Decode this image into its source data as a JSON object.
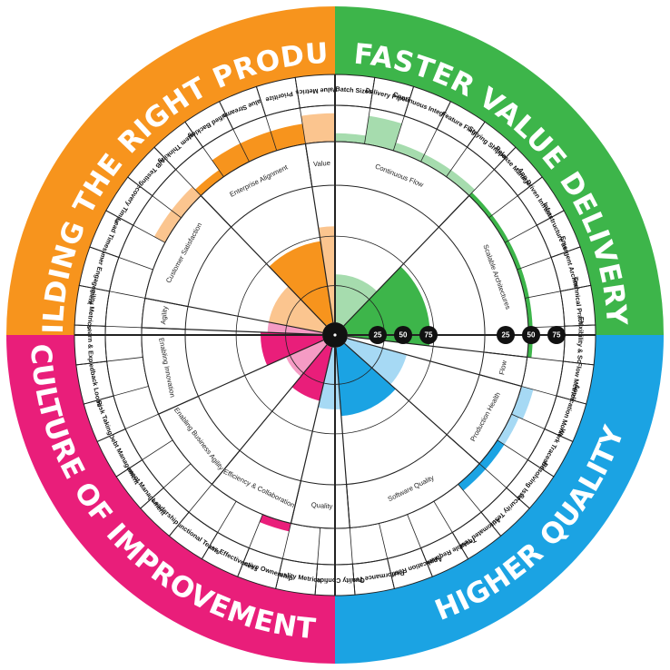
{
  "colors": {
    "orange": "#f7941d",
    "green": "#3db54a",
    "magenta": "#e91e7a",
    "blue": "#1ba3e3",
    "orange_light": "#fbc58f",
    "green_light": "#a6dcae",
    "magenta_light": "#f59bc4",
    "blue_light": "#a6d9f4"
  },
  "quadrants": [
    {
      "id": "orange",
      "label": "BUILDING THE RIGHT PRODUCT"
    },
    {
      "id": "green",
      "label": "FASTER VALUE DELIVERY"
    },
    {
      "id": "blue",
      "label": "HIGHER QUALITY"
    },
    {
      "id": "magenta",
      "label": "CULTURE OF IMPROVEMENT"
    }
  ],
  "scale_labels": [
    "25",
    "50",
    "75"
  ],
  "chart_data": {
    "type": "radial-bar",
    "categories": [
      {
        "label": "Batch Sizes",
        "quadrant": "green",
        "value": 65,
        "shade": "light"
      },
      {
        "label": "Delivery Pipeline",
        "quadrant": "green",
        "value": 90,
        "shade": "light"
      },
      {
        "label": "Continuous Integration",
        "quadrant": "green",
        "value": 65,
        "shade": "light"
      },
      {
        "label": "Feature Flags",
        "quadrant": "green",
        "value": 65,
        "shade": "light"
      },
      {
        "label": "Staying Shippable",
        "quadrant": "green",
        "value": 65,
        "shade": "light"
      },
      {
        "label": "Release Management",
        "quadrant": "green",
        "value": 60,
        "shade": "dark"
      },
      {
        "label": "App Driven Infrastructure",
        "quadrant": "green",
        "value": 60,
        "shade": "dark"
      },
      {
        "label": "Infrastructure as Code",
        "quadrant": "green",
        "value": 60,
        "shade": "dark"
      },
      {
        "label": "Emergent Architecture",
        "quadrant": "green",
        "value": 60,
        "shade": "dark"
      },
      {
        "label": "Technical Practices",
        "quadrant": "green",
        "value": 60,
        "shade": "dark"
      },
      {
        "label": "Flexibility & Scale",
        "quadrant": "green",
        "value": 60,
        "shade": "dark"
      },
      {
        "label": "Flow Metrics",
        "quadrant": "green",
        "value": 25,
        "shade": "light"
      },
      {
        "label": "Application Monitoring",
        "quadrant": "blue",
        "value": 70,
        "shade": "light"
      },
      {
        "label": "Work Traceability",
        "quadrant": "blue",
        "value": 65,
        "shade": "light"
      },
      {
        "label": "Resolving Issues",
        "quadrant": "blue",
        "value": 65,
        "shade": "dark"
      },
      {
        "label": "Security Testing",
        "quadrant": "blue",
        "value": 65,
        "shade": "dark"
      },
      {
        "label": "Automated Testing",
        "quadrant": "blue",
        "value": 55,
        "shade": "dark"
      },
      {
        "label": "Testable Requirements",
        "quadrant": "blue",
        "value": 55,
        "shade": "dark"
      },
      {
        "label": "Application Resiliency",
        "quadrant": "blue",
        "value": 35,
        "shade": "dark"
      },
      {
        "label": "Performance Testing",
        "quadrant": "blue",
        "value": 40,
        "shade": "dark"
      },
      {
        "label": "Quality Confidence",
        "quadrant": "blue",
        "value": 50,
        "shade": "light"
      },
      {
        "label": "Quality Metrics",
        "quadrant": "blue",
        "value": 45,
        "shade": "light"
      },
      {
        "label": "Collective Ownership",
        "quadrant": "magenta",
        "value": 65,
        "shade": "dark"
      },
      {
        "label": "Process Effectiveness",
        "quadrant": "magenta",
        "value": 50,
        "shade": "dark"
      },
      {
        "label": "X-Functional Teams",
        "quadrant": "magenta",
        "value": 45,
        "shade": "dark"
      },
      {
        "label": "Leadership",
        "quadrant": "magenta",
        "value": 35,
        "shade": "light"
      },
      {
        "label": "Impediment Management",
        "quadrant": "magenta",
        "value": 35,
        "shade": "light"
      },
      {
        "label": "Tech Debt Management",
        "quadrant": "magenta",
        "value": 35,
        "shade": "light"
      },
      {
        "label": "Risk Taking",
        "quadrant": "magenta",
        "value": 35,
        "shade": "dark"
      },
      {
        "label": "Feedback Loops",
        "quadrant": "magenta",
        "value": 50,
        "shade": "dark"
      },
      {
        "label": "Learn & Exp.",
        "quadrant": "magenta",
        "value": 55,
        "shade": "dark"
      },
      {
        "label": "Agility Metrics",
        "quadrant": "magenta",
        "value": 55,
        "shade": "light"
      },
      {
        "label": "Customer Engagement",
        "quadrant": "orange",
        "value": 55,
        "shade": "light"
      },
      {
        "label": "Lead Times",
        "quadrant": "orange",
        "value": 55,
        "shade": "light"
      },
      {
        "label": "Recovery Times",
        "quadrant": "orange",
        "value": 70,
        "shade": "light"
      },
      {
        "label": "A/B Testing",
        "quadrant": "orange",
        "value": 70,
        "shade": "light"
      },
      {
        "label": "System Thinking",
        "quadrant": "orange",
        "value": 65,
        "shade": "dark"
      },
      {
        "label": "Unified Backlog",
        "quadrant": "orange",
        "value": 80,
        "shade": "dark"
      },
      {
        "label": "Value Streams",
        "quadrant": "orange",
        "value": 80,
        "shade": "dark"
      },
      {
        "label": "Prioritize",
        "quadrant": "orange",
        "value": 80,
        "shade": "dark"
      },
      {
        "label": "Value Metrics",
        "quadrant": "orange",
        "value": 90,
        "shade": "light"
      }
    ],
    "categories_aux": [
      {
        "label": "Continuous Flow",
        "quadrant": "green",
        "value": 35,
        "shade": "light",
        "span": 5
      },
      {
        "label": "Scalable Architectures",
        "quadrant": "green",
        "value": 60,
        "shade": "dark",
        "span": 6
      },
      {
        "label": "Flow",
        "quadrant": "green",
        "value": 0,
        "shade": "light",
        "span": 1
      },
      {
        "label": "Production Health",
        "quadrant": "blue",
        "value": 45,
        "shade": "light",
        "span": 3
      },
      {
        "label": "Software Quality",
        "quadrant": "blue",
        "value": 50,
        "shade": "dark",
        "span": 5
      },
      {
        "label": "Quality",
        "quadrant": "blue",
        "value": 45,
        "shade": "light",
        "span": 2
      },
      {
        "label": "Efficiency & Collaboration",
        "quadrant": "magenta",
        "value": 40,
        "shade": "dark",
        "span": 3
      },
      {
        "label": "Enabling Business Agility",
        "quadrant": "magenta",
        "value": 30,
        "shade": "light",
        "span": 3
      },
      {
        "label": "Enabling Innovation",
        "quadrant": "magenta",
        "value": 45,
        "shade": "dark",
        "span": 3
      },
      {
        "label": "Agility",
        "quadrant": "magenta",
        "value": 40,
        "shade": "light",
        "span": 1
      },
      {
        "label": "Customer Satisfaction",
        "quadrant": "orange",
        "value": 40,
        "shade": "light",
        "span": 4
      },
      {
        "label": "Enterprise Alignment",
        "quadrant": "orange",
        "value": 60,
        "shade": "dark",
        "span": 4
      },
      {
        "label": "Value",
        "quadrant": "orange",
        "value": 70,
        "shade": "light",
        "span": 1
      }
    ]
  }
}
